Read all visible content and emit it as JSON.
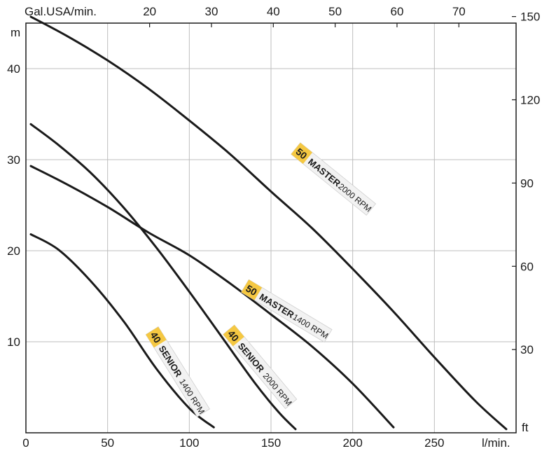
{
  "chart_data": {
    "type": "line",
    "title": "",
    "xlabel": "l/min.",
    "ylabel": "m",
    "x_secondary_label": "Gal.USA/min.",
    "y_secondary_label": "ft",
    "xlim": [
      0,
      300
    ],
    "ylim": [
      0,
      45
    ],
    "x_ticks": [
      "0",
      "50",
      "100",
      "150",
      "200",
      "250"
    ],
    "y_ticks": [
      "10",
      "20",
      "30",
      "40"
    ],
    "x_top_ticks": [
      "20",
      "30",
      "40",
      "50",
      "60",
      "70"
    ],
    "y_right_ticks": [
      "30",
      "60",
      "90",
      "120",
      "150"
    ],
    "grid": true,
    "series": [
      {
        "name": "50 MASTER 2000 RPM",
        "number": "50",
        "model": "MASTER",
        "rpm": "2000 RPM",
        "x": [
          3,
          25,
          50,
          75,
          100,
          125,
          150,
          175,
          200,
          225,
          250,
          275,
          294
        ],
        "y": [
          45.7,
          43.6,
          40.9,
          37.8,
          34.3,
          30.6,
          26.5,
          22.5,
          18.0,
          13.3,
          8.3,
          3.5,
          0.4
        ]
      },
      {
        "name": "40 SENIOR 2000 RPM",
        "number": "40",
        "model": "SENIOR",
        "rpm": "2000 RPM",
        "x": [
          3,
          20,
          40,
          60,
          80,
          100,
          120,
          140,
          155,
          165
        ],
        "y": [
          33.9,
          31.6,
          28.5,
          24.7,
          20.3,
          15.5,
          10.5,
          5.5,
          2.2,
          0.4
        ]
      },
      {
        "name": "50 MASTER 1400 RPM",
        "number": "50",
        "model": "MASTER",
        "rpm": "1400 RPM",
        "x": [
          3,
          25,
          50,
          75,
          100,
          125,
          150,
          175,
          200,
          225
        ],
        "y": [
          29.3,
          27.3,
          24.8,
          22.0,
          19.5,
          16.4,
          13.0,
          9.5,
          5.4,
          0.6
        ]
      },
      {
        "name": "40 SENIOR 1400 RPM",
        "number": "40",
        "model": "SENIOR",
        "rpm": "1400 RPM",
        "x": [
          3,
          20,
          40,
          60,
          80,
          100,
          115
        ],
        "y": [
          21.8,
          20.1,
          16.6,
          12.2,
          7.0,
          2.7,
          0.6
        ]
      }
    ]
  },
  "colors": {
    "curve": "#1a1a1a",
    "grid": "#bdbdbd",
    "badge": "#f5c842",
    "label_bg": "#f2f2f2"
  }
}
